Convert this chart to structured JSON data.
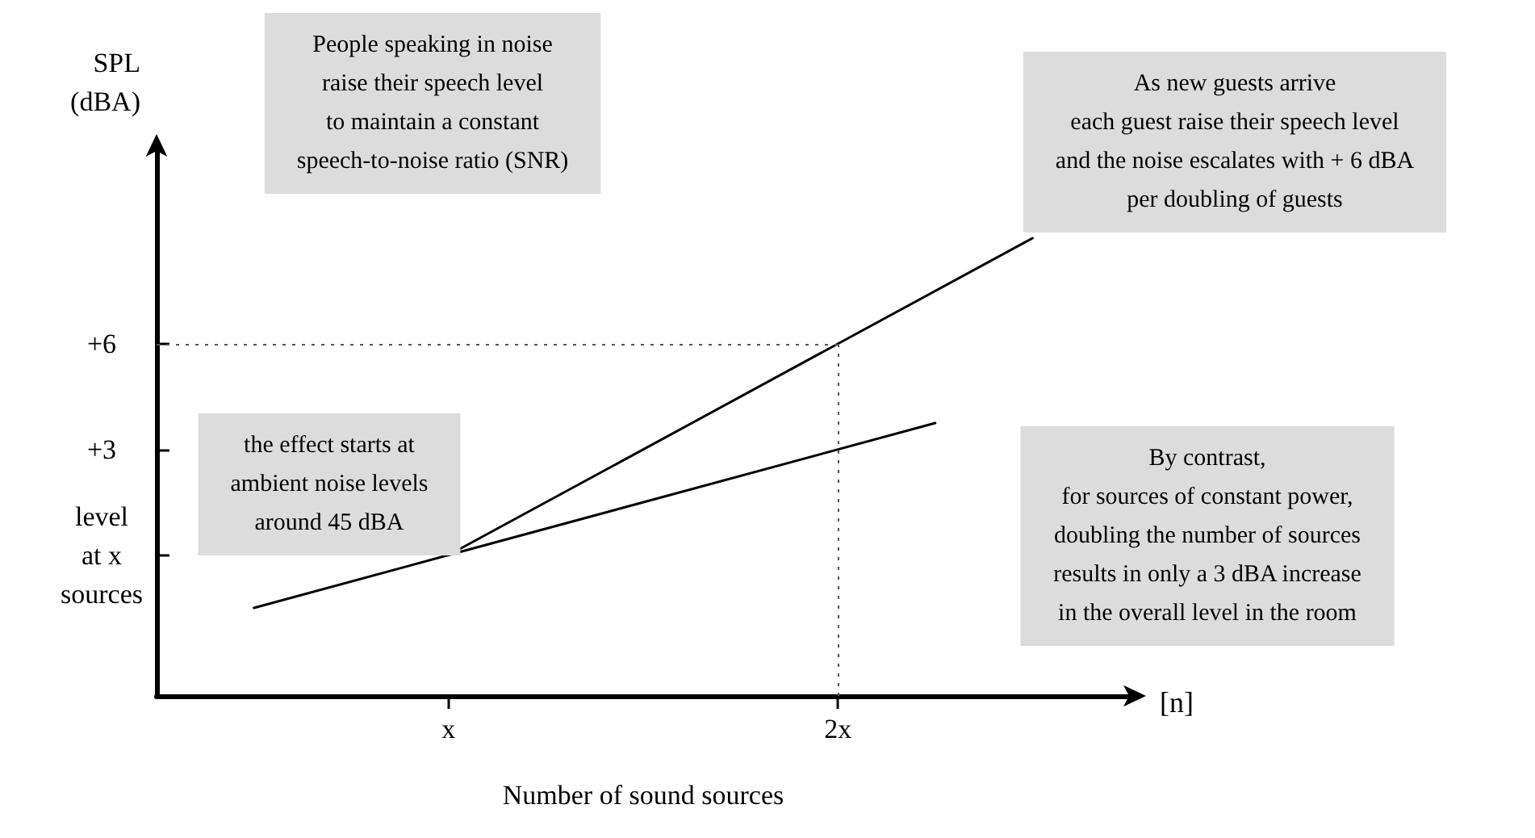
{
  "chart_data": {
    "type": "line",
    "xlabel": "Number of sound sources",
    "ylabel": "SPL\n(dBA)",
    "categories": [
      null,
      null,
      null,
      "x",
      null,
      null,
      null,
      "2x",
      null,
      null,
      null
    ],
    "ylim": [
      -4,
      11.5
    ],
    "yticks": [
      {
        "value": 0,
        "label": "level\nat x\nsources"
      },
      {
        "value": 3,
        "label": "+3"
      },
      {
        "value": 6,
        "label": "+6"
      }
    ],
    "series": [
      {
        "color": "#000000",
        "values": [
          null,
          null,
          null,
          0,
          null,
          null,
          null,
          null,
          null,
          9.0,
          null
        ]
      },
      {
        "color": "#000000",
        "values": [
          null,
          -1.5,
          null,
          0,
          null,
          null,
          null,
          null,
          3.75,
          null,
          null
        ]
      }
    ],
    "ref_lines": [
      {
        "axis": "y",
        "value": 6,
        "color": "#555555",
        "line_style": "dotted"
      },
      {
        "axis": "x",
        "value": "2x",
        "color": "#555555",
        "line_style": "dotted"
      }
    ],
    "annotations": [
      "People speaking in noise\nraise their speech level\nto maintain a constant\nspeech-to-noise ratio (SNR)",
      "As new guests arrive\neach guest raise their speech level\nand the noise escalates with + 6 dBA\nper doubling of guests",
      "the effect starts at\nambient noise levels\naround 45 dBA",
      "By contrast,\nfor sources of constant power,\ndoubling the number of sources\nresults in only a 3 dBA increase\nin the overall level in the room",
      "[n]"
    ],
    "marker": "none",
    "line_style": "solid",
    "grid": false
  }
}
